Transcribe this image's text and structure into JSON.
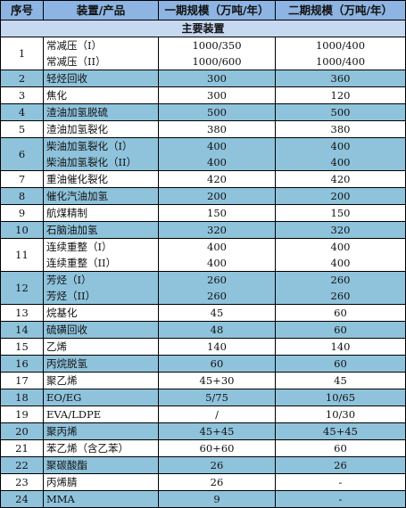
{
  "header": {
    "col_no": "序号",
    "col_unit": "装置/产品",
    "col_phase1": "一期规模（万吨/年）",
    "col_phase2": "二期规模（万吨/年）"
  },
  "section_title": "主要装置",
  "rows": [
    {
      "no": "1",
      "names": [
        "常减压（I）",
        "常减压（II）"
      ],
      "p1": [
        "1000/350",
        "1000/600"
      ],
      "p2": [
        "1000/400",
        "1000/400"
      ],
      "shade": false
    },
    {
      "no": "2",
      "names": [
        "轻烃回收"
      ],
      "p1": [
        "300"
      ],
      "p2": [
        "360"
      ],
      "shade": true
    },
    {
      "no": "3",
      "names": [
        "焦化"
      ],
      "p1": [
        "300"
      ],
      "p2": [
        "120"
      ],
      "shade": false
    },
    {
      "no": "4",
      "names": [
        "渣油加氢脱硫"
      ],
      "p1": [
        "500"
      ],
      "p2": [
        "500"
      ],
      "shade": true
    },
    {
      "no": "5",
      "names": [
        "渣油加氢裂化"
      ],
      "p1": [
        "380"
      ],
      "p2": [
        "380"
      ],
      "shade": false
    },
    {
      "no": "6",
      "names": [
        "柴油加氢裂化（I）",
        "柴油加氢裂化（II）"
      ],
      "p1": [
        "400",
        "400"
      ],
      "p2": [
        "400",
        "400"
      ],
      "shade": true
    },
    {
      "no": "7",
      "names": [
        "重油催化裂化"
      ],
      "p1": [
        "420"
      ],
      "p2": [
        "420"
      ],
      "shade": false
    },
    {
      "no": "8",
      "names": [
        "催化汽油加氢"
      ],
      "p1": [
        "200"
      ],
      "p2": [
        "200"
      ],
      "shade": true
    },
    {
      "no": "9",
      "names": [
        "航煤精制"
      ],
      "p1": [
        "150"
      ],
      "p2": [
        "150"
      ],
      "shade": false
    },
    {
      "no": "10",
      "names": [
        "石脑油加氢"
      ],
      "p1": [
        "320"
      ],
      "p2": [
        "320"
      ],
      "shade": true
    },
    {
      "no": "11",
      "names": [
        "连续重整（I）",
        "连续重整（II）"
      ],
      "p1": [
        "400",
        "400"
      ],
      "p2": [
        "400",
        "400"
      ],
      "shade": false
    },
    {
      "no": "12",
      "names": [
        "芳烃（I）",
        "芳烃（II）"
      ],
      "p1": [
        "260",
        "260"
      ],
      "p2": [
        "260",
        "260"
      ],
      "shade": true
    },
    {
      "no": "13",
      "names": [
        "烷基化"
      ],
      "p1": [
        "45"
      ],
      "p2": [
        "60"
      ],
      "shade": false
    },
    {
      "no": "14",
      "names": [
        "硫磺回收"
      ],
      "p1": [
        "48"
      ],
      "p2": [
        "60"
      ],
      "shade": true
    },
    {
      "no": "15",
      "names": [
        "乙烯"
      ],
      "p1": [
        "140"
      ],
      "p2": [
        "140"
      ],
      "shade": false
    },
    {
      "no": "16",
      "names": [
        "丙烷脱氢"
      ],
      "p1": [
        "60"
      ],
      "p2": [
        "60"
      ],
      "shade": true
    },
    {
      "no": "17",
      "names": [
        "聚乙烯"
      ],
      "p1": [
        "45+30"
      ],
      "p2": [
        "45"
      ],
      "shade": false
    },
    {
      "no": "18",
      "names": [
        "EO/EG"
      ],
      "p1": [
        "5/75"
      ],
      "p2": [
        "10/65"
      ],
      "shade": true
    },
    {
      "no": "19",
      "names": [
        "EVA/LDPE"
      ],
      "p1": [
        "/"
      ],
      "p2": [
        "10/30"
      ],
      "shade": false
    },
    {
      "no": "20",
      "names": [
        "聚丙烯"
      ],
      "p1": [
        "45+45"
      ],
      "p2": [
        "45+45"
      ],
      "shade": true
    },
    {
      "no": "21",
      "names": [
        "苯乙烯（含乙苯）"
      ],
      "p1": [
        "60+60"
      ],
      "p2": [
        "60"
      ],
      "shade": false
    },
    {
      "no": "22",
      "names": [
        "聚碳酸酯"
      ],
      "p1": [
        "26"
      ],
      "p2": [
        "26"
      ],
      "shade": true
    },
    {
      "no": "23",
      "names": [
        "丙烯腈"
      ],
      "p1": [
        "26"
      ],
      "p2": [
        "-"
      ],
      "shade": false
    },
    {
      "no": "24",
      "names": [
        "MMA"
      ],
      "p1": [
        "9"
      ],
      "p2": [
        "-"
      ],
      "shade": true
    }
  ]
}
